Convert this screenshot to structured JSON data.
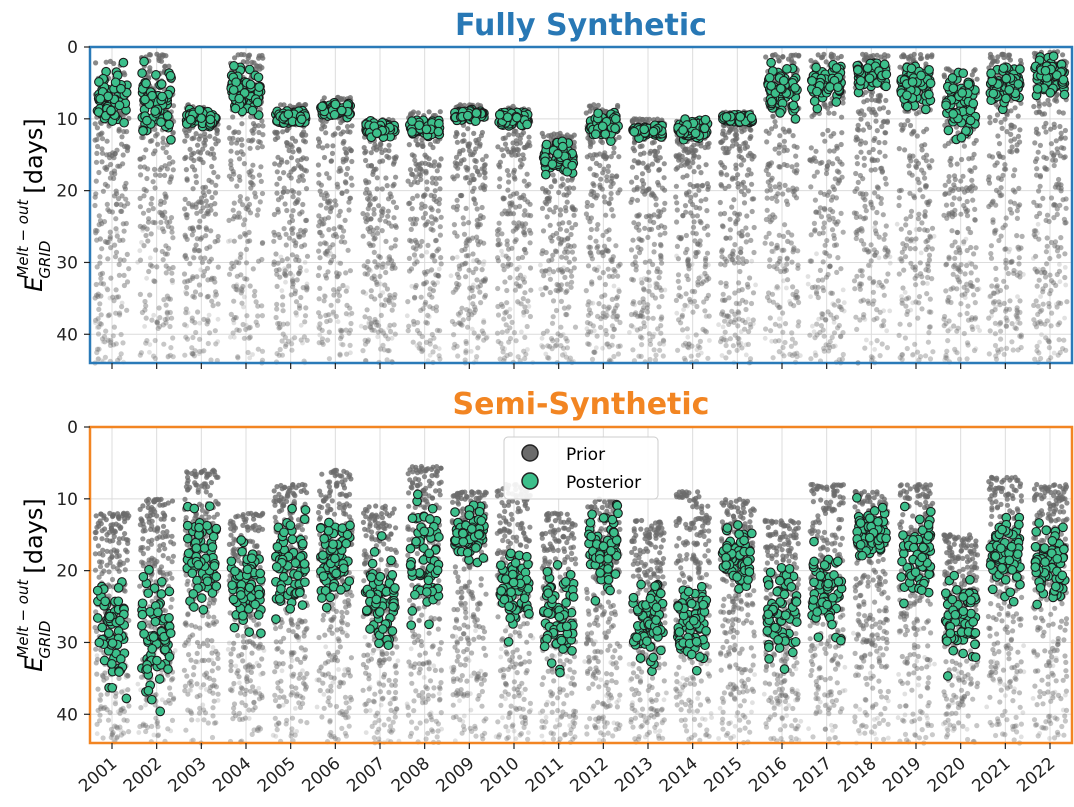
{
  "colors": {
    "panel1_title": "#2878b5",
    "panel1_frame": "#2a7ab8",
    "panel2_title": "#f28522",
    "panel2_frame": "#f28522",
    "prior": "#6b6b6b",
    "posterior": "#3cbf8b",
    "grid": "#dcdcdc"
  },
  "chart_data": [
    {
      "type": "scatter",
      "title": "Fully Synthetic",
      "ylabel_main": "E",
      "ylabel_sub": "GRID",
      "ylabel_sup": "Melt − out",
      "ylabel_units": "[days]",
      "ylim": [
        0,
        44
      ],
      "y_inverted": true,
      "yticks": [
        "0",
        "10",
        "20",
        "30",
        "40"
      ],
      "categories": [
        "2001",
        "2002",
        "2003",
        "2004",
        "2005",
        "2006",
        "2007",
        "2008",
        "2009",
        "2010",
        "2011",
        "2012",
        "2013",
        "2014",
        "2015",
        "2016",
        "2017",
        "2018",
        "2019",
        "2020",
        "2021",
        "2022"
      ],
      "grid": true,
      "series": [
        {
          "kind": "prior_cloud",
          "prior_ranges": [
            [
              2,
              44
            ],
            [
              1,
              44
            ],
            [
              8,
              44
            ],
            [
              1,
              44
            ],
            [
              8,
              44
            ],
            [
              7,
              44
            ],
            [
              10,
              44
            ],
            [
              9,
              44
            ],
            [
              8,
              44
            ],
            [
              8,
              44
            ],
            [
              12,
              44
            ],
            [
              8,
              44
            ],
            [
              10,
              44
            ],
            [
              10,
              44
            ],
            [
              9,
              44
            ],
            [
              1,
              44
            ],
            [
              1,
              44
            ],
            [
              1,
              44
            ],
            [
              1,
              44
            ],
            [
              3,
              44
            ],
            [
              1,
              44
            ],
            [
              0.5,
              44
            ]
          ]
        },
        {
          "kind": "posterior",
          "posterior_ranges": [
            [
              1.5,
              12.5
            ],
            [
              1,
              14.5
            ],
            [
              8.5,
              11.5
            ],
            [
              1.5,
              11.5
            ],
            [
              8.5,
              11
            ],
            [
              7.5,
              10
            ],
            [
              10,
              13
            ],
            [
              9.5,
              13.5
            ],
            [
              8.5,
              10.5
            ],
            [
              8.5,
              11.5
            ],
            [
              12,
              18.5
            ],
            [
              8,
              13.5
            ],
            [
              10.5,
              13
            ],
            [
              9.5,
              13.5
            ],
            [
              9,
              11
            ],
            [
              1,
              12
            ],
            [
              1.5,
              9
            ],
            [
              1,
              7
            ],
            [
              1,
              10
            ],
            [
              1,
              15
            ],
            [
              1,
              9.5
            ],
            [
              0.5,
              7.5
            ]
          ]
        }
      ]
    },
    {
      "type": "scatter",
      "title": "Semi-Synthetic",
      "ylabel_main": "E",
      "ylabel_sub": "GRID",
      "ylabel_sup": "Melt − out",
      "ylabel_units": "[days]",
      "ylim": [
        0,
        44
      ],
      "y_inverted": true,
      "yticks": [
        "0",
        "10",
        "20",
        "30",
        "40"
      ],
      "categories": [
        "2001",
        "2002",
        "2003",
        "2004",
        "2005",
        "2006",
        "2007",
        "2008",
        "2009",
        "2010",
        "2011",
        "2012",
        "2013",
        "2014",
        "2015",
        "2016",
        "2017",
        "2018",
        "2019",
        "2020",
        "2021",
        "2022"
      ],
      "grid": true,
      "legend": {
        "placement": "top-center",
        "entries": [
          "Prior",
          "Posterior"
        ]
      },
      "series": [
        {
          "name": "Prior",
          "prior_ranges": [
            [
              12,
              44
            ],
            [
              10,
              44
            ],
            [
              6,
              44
            ],
            [
              12,
              44
            ],
            [
              8,
              44
            ],
            [
              6,
              44
            ],
            [
              11,
              44
            ],
            [
              5.5,
              44
            ],
            [
              9,
              44
            ],
            [
              8,
              44
            ],
            [
              12,
              44
            ],
            [
              10,
              44
            ],
            [
              13,
              44
            ],
            [
              9,
              44
            ],
            [
              10,
              44
            ],
            [
              13,
              44
            ],
            [
              8,
              44
            ],
            [
              9,
              44
            ],
            [
              8,
              44
            ],
            [
              15,
              44
            ],
            [
              7,
              44
            ],
            [
              8,
              44
            ]
          ]
        },
        {
          "name": "Posterior",
          "posterior_ranges": [
            [
              18,
              39.5
            ],
            [
              16.5,
              44
            ],
            [
              8.5,
              27.5
            ],
            [
              13.5,
              30
            ],
            [
              9.5,
              30
            ],
            [
              9.5,
              27.5
            ],
            [
              14,
              33
            ],
            [
              7,
              30
            ],
            [
              9.5,
              20
            ],
            [
              14,
              31
            ],
            [
              15,
              37.5
            ],
            [
              7.5,
              26.5
            ],
            [
              17.5,
              36.5
            ],
            [
              18.5,
              35.5
            ],
            [
              12.5,
              24
            ],
            [
              17,
              35.5
            ],
            [
              15.5,
              31
            ],
            [
              9,
              20
            ],
            [
              10,
              25.5
            ],
            [
              17.5,
              36
            ],
            [
              9.5,
              27
            ],
            [
              11,
              28.5
            ]
          ]
        }
      ]
    }
  ]
}
